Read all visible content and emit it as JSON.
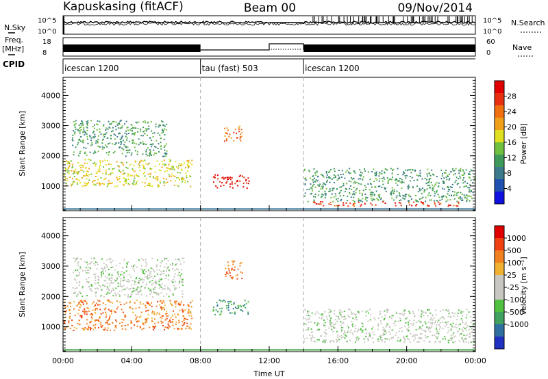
{
  "header": {
    "station": "Kapuskasing (fitACF)",
    "beam": "Beam 00",
    "date": "09/Nov/2014"
  },
  "strips": {
    "sky_label": "N.Sky",
    "sky_ticks": [
      "10^5",
      "10^0"
    ],
    "search_label": "N.Search",
    "search_ticks": [
      "10^5",
      "10^0"
    ],
    "freq_label_1": "Freq.",
    "freq_label_2": "[MHz]",
    "freq_ticks": [
      "18",
      "8"
    ],
    "nave_label": "Nave",
    "nave_ticks": [
      "60",
      "0"
    ],
    "cpid_label": "CPID",
    "cpid_segments": [
      {
        "name": "icescan 1200",
        "start_hour": 0,
        "end_hour": 8
      },
      {
        "name": "tau (fast) 503",
        "start_hour": 8,
        "end_hour": 14
      },
      {
        "name": "icescan 1200",
        "start_hour": 14,
        "end_hour": 24
      }
    ]
  },
  "chart_data": [
    {
      "type": "heatmap",
      "title": "",
      "xlabel": "Time UT",
      "ylabel": "Slant Range [km]",
      "x_range_hours": [
        0,
        24
      ],
      "ylim": [
        180,
        4600
      ],
      "x_tick_labels": [
        "00:00",
        "04:00",
        "08:00",
        "12:00",
        "16:00",
        "20:00",
        "00:00"
      ],
      "y_tick_labels": [
        "1000",
        "2000",
        "3000",
        "4000"
      ],
      "colorbar": {
        "label": "Power [dB]",
        "ticks": [
          "4",
          "8",
          "12",
          "16",
          "20",
          "24",
          "28"
        ],
        "colors": [
          "#1010e0",
          "#2050b0",
          "#3c7a8c",
          "#3e9a5a",
          "#70c040",
          "#e0e020",
          "#f0a018",
          "#f07010",
          "#e83010",
          "#e00000"
        ]
      },
      "echo_regions": [
        {
          "hours": [
            0,
            7.5
          ],
          "range_km": [
            1000,
            1900
          ],
          "level_db": 14
        },
        {
          "hours": [
            0.5,
            6
          ],
          "range_km": [
            2000,
            3200
          ],
          "level_db": 8
        },
        {
          "hours": [
            8.7,
            10.8
          ],
          "range_km": [
            950,
            1400
          ],
          "level_db": 28
        },
        {
          "hours": [
            9.3,
            10.4
          ],
          "range_km": [
            2500,
            3000
          ],
          "level_db": 20
        },
        {
          "hours": [
            14,
            24
          ],
          "range_km": [
            500,
            1600
          ],
          "level_db": 9
        },
        {
          "hours": [
            14.5,
            23
          ],
          "range_km": [
            350,
            500
          ],
          "level_db": 25
        }
      ]
    },
    {
      "type": "heatmap",
      "title": "",
      "xlabel": "Time UT",
      "ylabel": "Slant Range [km]",
      "x_range_hours": [
        0,
        24
      ],
      "ylim": [
        180,
        4600
      ],
      "x_tick_labels": [
        "00:00",
        "04:00",
        "08:00",
        "12:00",
        "16:00",
        "20:00",
        "00:00"
      ],
      "y_tick_labels": [
        "1000",
        "2000",
        "3000",
        "4000"
      ],
      "colorbar": {
        "label": "Velocity [m s⁻¹]",
        "ticks": [
          "1000",
          "500",
          "100",
          "25",
          "-25",
          "-100",
          "-500",
          "-1000"
        ],
        "colors": [
          "#2030c0",
          "#3070a0",
          "#40a060",
          "#50c040",
          "#c8c8c0",
          "#c8c8c0",
          "#f0b030",
          "#f08020",
          "#f04010",
          "#e00000"
        ]
      },
      "echo_regions": [
        {
          "hours": [
            0,
            7.5
          ],
          "range_km": [
            900,
            1900
          ],
          "velocity_ms": -300
        },
        {
          "hours": [
            0.5,
            7
          ],
          "range_km": [
            2000,
            3300
          ],
          "velocity_ms": 0
        },
        {
          "hours": [
            8.7,
            10.8
          ],
          "range_km": [
            1400,
            1900
          ],
          "velocity_ms": 100
        },
        {
          "hours": [
            9.3,
            10.4
          ],
          "range_km": [
            2600,
            3200
          ],
          "velocity_ms": -400
        },
        {
          "hours": [
            14,
            24
          ],
          "range_km": [
            500,
            1600
          ],
          "velocity_ms": 0
        }
      ]
    }
  ]
}
